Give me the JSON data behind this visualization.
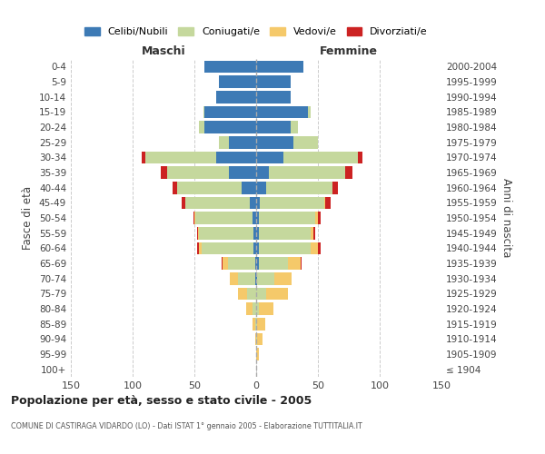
{
  "age_groups": [
    "100+",
    "95-99",
    "90-94",
    "85-89",
    "80-84",
    "75-79",
    "70-74",
    "65-69",
    "60-64",
    "55-59",
    "50-54",
    "45-49",
    "40-44",
    "35-39",
    "30-34",
    "25-29",
    "20-24",
    "15-19",
    "10-14",
    "5-9",
    "0-4"
  ],
  "birth_years": [
    "≤ 1904",
    "1905-1909",
    "1910-1914",
    "1915-1919",
    "1920-1924",
    "1925-1929",
    "1930-1934",
    "1935-1939",
    "1940-1944",
    "1945-1949",
    "1950-1954",
    "1955-1959",
    "1960-1964",
    "1965-1969",
    "1970-1974",
    "1975-1979",
    "1980-1984",
    "1985-1989",
    "1990-1994",
    "1995-1999",
    "2000-2004"
  ],
  "colors": {
    "celibi": "#3d7ab5",
    "coniugati": "#c5d89d",
    "vedovi": "#f5c96a",
    "divorziati": "#cc2222"
  },
  "maschi": {
    "celibi": [
      0,
      0,
      0,
      0,
      0,
      0,
      1,
      1,
      2,
      2,
      3,
      5,
      12,
      22,
      32,
      22,
      42,
      42,
      32,
      30,
      42
    ],
    "coniugati": [
      0,
      0,
      0,
      1,
      3,
      7,
      14,
      22,
      42,
      44,
      46,
      52,
      52,
      50,
      58,
      8,
      4,
      1,
      0,
      0,
      0
    ],
    "vedovi": [
      0,
      0,
      1,
      2,
      5,
      8,
      6,
      4,
      2,
      1,
      1,
      0,
      0,
      0,
      0,
      0,
      0,
      0,
      0,
      0,
      0
    ],
    "divorziati": [
      0,
      0,
      0,
      0,
      0,
      0,
      0,
      1,
      2,
      1,
      1,
      3,
      4,
      5,
      3,
      0,
      0,
      0,
      0,
      0,
      0
    ]
  },
  "femmine": {
    "nubili": [
      0,
      0,
      0,
      0,
      0,
      0,
      1,
      2,
      2,
      2,
      2,
      3,
      8,
      10,
      22,
      30,
      28,
      42,
      28,
      28,
      38
    ],
    "coniugate": [
      0,
      0,
      1,
      1,
      2,
      8,
      14,
      24,
      42,
      42,
      46,
      52,
      54,
      62,
      60,
      20,
      6,
      2,
      0,
      0,
      0
    ],
    "vedove": [
      0,
      2,
      4,
      6,
      12,
      18,
      14,
      10,
      6,
      2,
      2,
      1,
      0,
      0,
      0,
      0,
      0,
      0,
      0,
      0,
      0
    ],
    "divorziate": [
      0,
      0,
      0,
      0,
      0,
      0,
      0,
      1,
      2,
      2,
      2,
      4,
      4,
      6,
      4,
      0,
      0,
      0,
      0,
      0,
      0
    ]
  },
  "xlim": 150,
  "title": "Popolazione per età, sesso e stato civile - 2005",
  "subtitle": "COMUNE DI CASTIRAGA VIDARDO (LO) - Dati ISTAT 1° gennaio 2005 - Elaborazione TUTTITALIA.IT",
  "ylabel_left": "Fasce di età",
  "ylabel_right": "Anni di nascita",
  "maschi_label": "Maschi",
  "femmine_label": "Femmine",
  "legend_labels": [
    "Celibi/Nubili",
    "Coniugati/e",
    "Vedovi/e",
    "Divorziati/e"
  ],
  "legend_colors": [
    "#3d7ab5",
    "#c5d89d",
    "#f5c96a",
    "#cc2222"
  ],
  "background_color": "#ffffff",
  "grid_color": "#cccccc"
}
